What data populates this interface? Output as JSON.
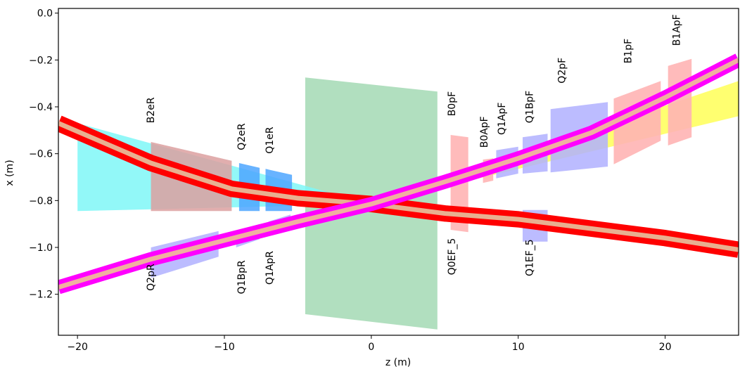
{
  "chart_data": {
    "type": "area",
    "title": "",
    "xlabel": "z (m)",
    "ylabel": "x (m)",
    "xlim": [
      -21.3,
      25
    ],
    "ylim": [
      -1.375,
      0.02
    ],
    "x_ticks": [
      -20,
      -10,
      0,
      10,
      20
    ],
    "x_tick_labels": [
      "−20",
      "−10",
      "0",
      "10",
      "20"
    ],
    "y_ticks": [
      0.0,
      -0.2,
      -0.4,
      -0.6,
      -0.8,
      -1.0,
      -1.2
    ],
    "y_tick_labels": [
      "0.0",
      "−0.2",
      "−0.4",
      "−0.6",
      "−0.8",
      "−1.0",
      "−1.2"
    ],
    "grid": false,
    "colors": {
      "electron_beam": "#ff0000",
      "electron_core": "#e8b090",
      "proton_beam": "#ff00ff",
      "proton_core": "#f0b0a0",
      "detector": "#a8dcb8",
      "electron_side_envelope": "#7ff7f7",
      "proton_side_envelope": "#ffff40",
      "dipole": "#ffb4b4",
      "quad_electron": "#4da6ff",
      "quad_proton": "#b0b0ff"
    },
    "regions": [
      {
        "name": "detector",
        "color": "#a8dcb8",
        "opacity": 0.9,
        "points": [
          [
            -4.5,
            -0.275
          ],
          [
            4.5,
            -0.335
          ],
          [
            4.5,
            -1.35
          ],
          [
            -4.5,
            -1.285
          ]
        ]
      },
      {
        "name": "electron-envelope",
        "color": "#7ff7f7",
        "opacity": 0.85,
        "points": [
          [
            -20,
            -0.47
          ],
          [
            0,
            -0.815
          ],
          [
            -20,
            -0.845
          ]
        ]
      },
      {
        "name": "proton-envelope",
        "color": "#ffff40",
        "opacity": 0.75,
        "points": [
          [
            0,
            -0.815
          ],
          [
            25,
            -0.29
          ],
          [
            25,
            -0.44
          ]
        ]
      },
      {
        "name": "B2eR",
        "color": "#dca0a0",
        "opacity": 0.85,
        "points": [
          [
            -15,
            -0.55
          ],
          [
            -9.5,
            -0.63
          ],
          [
            -9.5,
            -0.845
          ],
          [
            -15,
            -0.845
          ]
        ]
      },
      {
        "name": "Q2eR",
        "color": "#4da6ff",
        "opacity": 0.85,
        "points": [
          [
            -9.0,
            -0.64
          ],
          [
            -7.6,
            -0.66
          ],
          [
            -7.6,
            -0.845
          ],
          [
            -9.0,
            -0.845
          ]
        ]
      },
      {
        "name": "Q1eR",
        "color": "#4da6ff",
        "opacity": 0.85,
        "points": [
          [
            -7.2,
            -0.665
          ],
          [
            -5.4,
            -0.69
          ],
          [
            -5.4,
            -0.845
          ],
          [
            -7.2,
            -0.845
          ]
        ]
      },
      {
        "name": "Q2pR",
        "color": "#b0b0ff",
        "opacity": 0.85,
        "points": [
          [
            -15,
            -1.0
          ],
          [
            -10.4,
            -0.93
          ],
          [
            -10.4,
            -1.04
          ],
          [
            -15,
            -1.13
          ]
        ]
      },
      {
        "name": "Q1BpR",
        "color": "#b0b0ff",
        "opacity": 0.85,
        "points": [
          [
            -9.2,
            -0.93
          ],
          [
            -7.6,
            -0.9
          ],
          [
            -7.6,
            -0.965
          ],
          [
            -9.2,
            -1.0
          ]
        ]
      },
      {
        "name": "Q1ApR",
        "color": "#b0b0ff",
        "opacity": 0.85,
        "points": [
          [
            -7.0,
            -0.89
          ],
          [
            -5.5,
            -0.86
          ],
          [
            -5.5,
            -0.915
          ],
          [
            -7.0,
            -0.945
          ]
        ]
      },
      {
        "name": "B0pF",
        "color": "#ffb4b4",
        "opacity": 0.9,
        "points": [
          [
            5.4,
            -0.52
          ],
          [
            6.6,
            -0.53
          ],
          [
            6.6,
            -0.935
          ],
          [
            5.4,
            -0.925
          ]
        ]
      },
      {
        "name": "B0ApF",
        "color": "#ffb4b4",
        "opacity": 0.9,
        "points": [
          [
            7.6,
            -0.625
          ],
          [
            8.3,
            -0.62
          ],
          [
            8.3,
            -0.715
          ],
          [
            7.6,
            -0.725
          ]
        ]
      },
      {
        "name": "Q1ApF",
        "color": "#b0b0ff",
        "opacity": 0.85,
        "points": [
          [
            8.5,
            -0.585
          ],
          [
            10.0,
            -0.57
          ],
          [
            10.0,
            -0.685
          ],
          [
            8.5,
            -0.705
          ]
        ]
      },
      {
        "name": "Q1BpF",
        "color": "#b0b0ff",
        "opacity": 0.85,
        "points": [
          [
            10.3,
            -0.53
          ],
          [
            12.0,
            -0.515
          ],
          [
            12.0,
            -0.675
          ],
          [
            10.3,
            -0.685
          ]
        ]
      },
      {
        "name": "Q1EF_5",
        "color": "#b0b0ff",
        "opacity": 0.85,
        "points": [
          [
            10.3,
            -0.84
          ],
          [
            12.0,
            -0.84
          ],
          [
            12.0,
            -0.975
          ],
          [
            10.3,
            -0.975
          ]
        ]
      },
      {
        "name": "Q2pF",
        "color": "#b0b0ff",
        "opacity": 0.85,
        "points": [
          [
            12.2,
            -0.41
          ],
          [
            16.1,
            -0.38
          ],
          [
            16.1,
            -0.655
          ],
          [
            12.2,
            -0.68
          ]
        ]
      },
      {
        "name": "B1pF",
        "color": "#ffb4b4",
        "opacity": 0.9,
        "points": [
          [
            16.5,
            -0.365
          ],
          [
            19.7,
            -0.29
          ],
          [
            19.7,
            -0.545
          ],
          [
            16.5,
            -0.645
          ]
        ]
      },
      {
        "name": "B1ApF",
        "color": "#ffb4b4",
        "opacity": 0.9,
        "points": [
          [
            20.2,
            -0.225
          ],
          [
            21.8,
            -0.195
          ],
          [
            21.8,
            -0.53
          ],
          [
            20.2,
            -0.565
          ]
        ]
      }
    ],
    "series": [
      {
        "role": "electron-beam",
        "color": "#ff0000",
        "width": 0.07,
        "x": [
          -21.3,
          -15,
          -9.5,
          -5,
          0,
          5,
          10,
          15,
          20,
          25
        ],
        "y": [
          -0.47,
          -0.64,
          -0.75,
          -0.79,
          -0.815,
          -0.855,
          -0.88,
          -0.92,
          -0.96,
          -1.01
        ]
      },
      {
        "role": "electron-beam-core",
        "color": "#e8b090",
        "width": 0.02,
        "x": [
          -21.3,
          -15,
          -9.5,
          -5,
          0,
          5,
          10,
          15,
          20,
          25
        ],
        "y": [
          -0.47,
          -0.64,
          -0.75,
          -0.79,
          -0.815,
          -0.855,
          -0.88,
          -0.92,
          -0.96,
          -1.01
        ]
      },
      {
        "role": "proton-beam",
        "color": "#ff00ff",
        "width": 0.06,
        "x": [
          -21.3,
          -15,
          -10,
          -5,
          0,
          5,
          10,
          15,
          20,
          25
        ],
        "y": [
          -1.17,
          -1.05,
          -0.97,
          -0.89,
          -0.815,
          -0.72,
          -0.62,
          -0.51,
          -0.36,
          -0.2
        ]
      },
      {
        "role": "proton-beam-core",
        "color": "#f0b0a0",
        "width": 0.02,
        "x": [
          -21.3,
          -15,
          -10,
          -5,
          0,
          5,
          10,
          15,
          20,
          25
        ],
        "y": [
          -1.17,
          -1.05,
          -0.97,
          -0.89,
          -0.815,
          -0.72,
          -0.62,
          -0.51,
          -0.36,
          -0.2
        ]
      }
    ],
    "annotations": [
      {
        "text": "B2eR",
        "x": -14.8,
        "y": -0.47,
        "anchor": "start"
      },
      {
        "text": "Q2eR",
        "x": -8.6,
        "y": -0.585,
        "anchor": "start"
      },
      {
        "text": "Q1eR",
        "x": -6.7,
        "y": -0.6,
        "anchor": "start"
      },
      {
        "text": "B0pF",
        "x": 5.7,
        "y": -0.44,
        "anchor": "start"
      },
      {
        "text": "B0ApF",
        "x": 7.9,
        "y": -0.575,
        "anchor": "start"
      },
      {
        "text": "Q1ApF",
        "x": 9.1,
        "y": -0.52,
        "anchor": "start"
      },
      {
        "text": "Q1BpF",
        "x": 11.0,
        "y": -0.47,
        "anchor": "start"
      },
      {
        "text": "Q2pF",
        "x": 13.2,
        "y": -0.3,
        "anchor": "start"
      },
      {
        "text": "B1pF",
        "x": 17.7,
        "y": -0.215,
        "anchor": "start"
      },
      {
        "text": "B1ApF",
        "x": 21.0,
        "y": -0.14,
        "anchor": "start"
      },
      {
        "text": "Q2pR",
        "x": -14.8,
        "y": -1.07,
        "anchor": "end"
      },
      {
        "text": "Q1BpR",
        "x": -8.6,
        "y": -1.055,
        "anchor": "end"
      },
      {
        "text": "Q1ApR",
        "x": -6.7,
        "y": -1.015,
        "anchor": "end"
      },
      {
        "text": "Q0EF_5",
        "x": 5.7,
        "y": -0.96,
        "anchor": "end"
      },
      {
        "text": "Q1EF_5",
        "x": 11.0,
        "y": -0.965,
        "anchor": "end"
      }
    ]
  }
}
